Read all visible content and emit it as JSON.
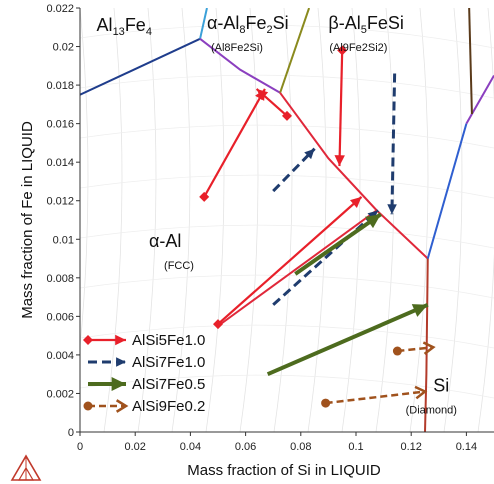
{
  "chart_data": {
    "type": "line",
    "xlabel": "Mass fraction of Si in LIQUID",
    "ylabel": "Mass fraction of Fe in LIQUID",
    "xlim": [
      0,
      0.15
    ],
    "ylim": [
      0,
      0.022
    ],
    "x_ticks": [
      "0",
      "0.02",
      "0.04",
      "0.06",
      "0.08",
      "0.1",
      "0.12",
      "0.14"
    ],
    "y_ticks": [
      "0",
      "0.002",
      "0.004",
      "0.006",
      "0.008",
      "0.01",
      "0.012",
      "0.014",
      "0.016",
      "0.018",
      "0.02",
      "0.022"
    ],
    "grid": false,
    "legend_position": "bottom-left",
    "phase_labels": [
      {
        "main": "Al",
        "sub1": "13",
        "mid": "Fe",
        "sub2": "4",
        "note": "",
        "x": 0.006,
        "y": 0.0208
      },
      {
        "main": "α-Al",
        "sub1": "8",
        "mid": "Fe",
        "sub2": "2",
        "tail": "Si",
        "note": "(Al8Fe2Si)",
        "x": 0.046,
        "y": 0.0209
      },
      {
        "main": "β-Al",
        "sub1": "5",
        "mid": "FeSi",
        "sub2": "",
        "note": "(Al9Fe2Si2)",
        "x": 0.09,
        "y": 0.0209
      },
      {
        "main": "α-Al",
        "note": "(FCC)",
        "x": 0.025,
        "y": 0.0096
      },
      {
        "main": "Si",
        "note": "(Diamond)",
        "x": 0.128,
        "y": 0.0021
      }
    ],
    "boundaries": [
      {
        "name": "Al13Fe4 / α-Al",
        "color": "#1f3d8c",
        "points": [
          [
            0,
            0.0175
          ],
          [
            0.0435,
            0.0204
          ]
        ]
      },
      {
        "name": "Al13Fe4 / α-Al8Fe2Si",
        "color": "#3aa0d8",
        "points": [
          [
            0.0435,
            0.0204
          ],
          [
            0.046,
            0.022
          ]
        ]
      },
      {
        "name": "α-Al8Fe2Si / α-Al",
        "color": "#8b3fbf",
        "points": [
          [
            0.0435,
            0.0204
          ],
          [
            0.058,
            0.0188
          ],
          [
            0.0725,
            0.0176
          ]
        ]
      },
      {
        "name": "α-Al8Fe2Si / β-Al5FeSi",
        "color": "#8a8a1e",
        "points": [
          [
            0.0725,
            0.0176
          ],
          [
            0.083,
            0.022
          ]
        ]
      },
      {
        "name": "β-Al5FeSi / α-Al",
        "color": "#e0283a",
        "points": [
          [
            0.0725,
            0.0176
          ],
          [
            0.09,
            0.0142
          ],
          [
            0.1075,
            0.0115
          ],
          [
            0.126,
            0.009
          ]
        ]
      },
      {
        "name": "α-Al / Si",
        "color": "#b33b2b",
        "points": [
          [
            0.126,
            0.009
          ],
          [
            0.1255,
            0.003
          ],
          [
            0.125,
            0
          ]
        ]
      },
      {
        "name": "β-Al5FeSi / Si",
        "color": "#2f5fd0",
        "points": [
          [
            0.126,
            0.009
          ],
          [
            0.14,
            0.016
          ]
        ]
      },
      {
        "name": "upper right",
        "color": "#8b3fbf",
        "points": [
          [
            0.14,
            0.016
          ],
          [
            0.15,
            0.0185
          ]
        ]
      },
      {
        "name": "α-Al / eutectic valley",
        "color": "#e0283a",
        "points": [
          [
            0.05,
            0.0055
          ],
          [
            0.1075,
            0.0115
          ]
        ]
      },
      {
        "name": "far right",
        "color": "#5a3a1a",
        "points": [
          [
            0.141,
            0.022
          ],
          [
            0.142,
            0.0165
          ]
        ]
      }
    ],
    "series": [
      {
        "name": "AlSi5Fe1.0",
        "color": "#e8202a",
        "style": "solid-diamond",
        "paths": [
          [
            [
              0.045,
              0.0122
            ],
            [
              0.067,
              0.0178
            ]
          ],
          [
            [
              0.05,
              0.0056
            ],
            [
              0.102,
              0.0122
            ]
          ],
          [
            [
              0.095,
              0.0198
            ],
            [
              0.094,
              0.0138
            ]
          ],
          [
            [
              0.075,
              0.0164
            ],
            [
              0.064,
              0.0178
            ]
          ]
        ]
      },
      {
        "name": "AlSi7Fe1.0",
        "color": "#1f3c6e",
        "style": "dashed",
        "paths": [
          [
            [
              0.07,
              0.0125
            ],
            [
              0.085,
              0.0147
            ]
          ],
          [
            [
              0.07,
              0.0066
            ],
            [
              0.108,
              0.0115
            ]
          ],
          [
            [
              0.114,
              0.0186
            ],
            [
              0.113,
              0.0113
            ]
          ]
        ]
      },
      {
        "name": "AlSi7Fe0.5",
        "color": "#4d6b1e",
        "style": "thick",
        "paths": [
          [
            [
              0.078,
              0.0082
            ],
            [
              0.109,
              0.0113
            ]
          ],
          [
            [
              0.068,
              0.003
            ],
            [
              0.126,
              0.0066
            ]
          ]
        ]
      },
      {
        "name": "AlSi9Fe0.2",
        "color": "#a0521d",
        "style": "dashed-dot",
        "paths": [
          [
            [
              0.115,
              0.0042
            ],
            [
              0.128,
              0.0044
            ]
          ],
          [
            [
              0.089,
              0.0015
            ],
            [
              0.125,
              0.0021
            ]
          ]
        ]
      }
    ]
  }
}
